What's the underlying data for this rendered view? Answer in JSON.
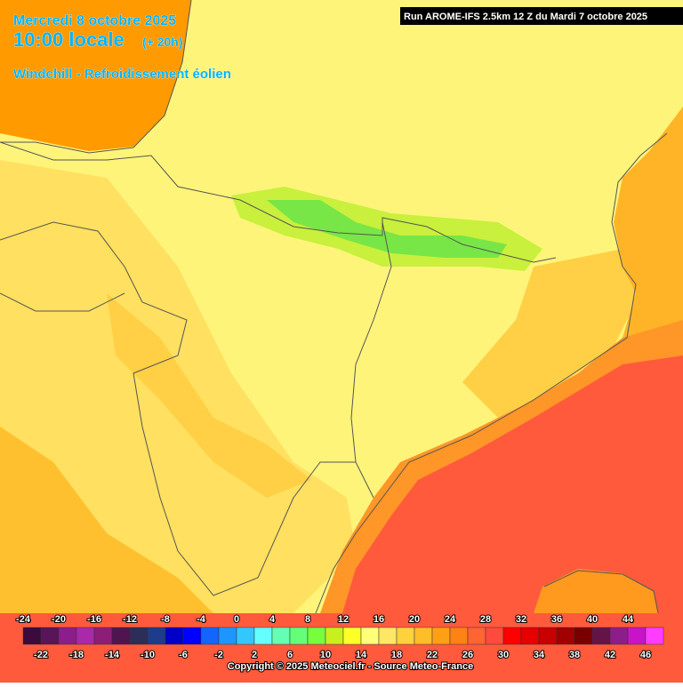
{
  "header": {
    "date": "Mercredi 8 octobre 2025",
    "time": "10:00 locale",
    "offset": "(+ 20h)",
    "variable": "Windchill - Refroidissement éolien",
    "run": "Run AROME-IFS 2.5km 12 Z du Mardi 7 octobre 2025"
  },
  "legend": {
    "values": [
      -24,
      -22,
      -20,
      -18,
      -16,
      -14,
      -12,
      -10,
      -8,
      -6,
      -4,
      -2,
      0,
      2,
      4,
      6,
      8,
      10,
      12,
      14,
      16,
      18,
      20,
      22,
      24,
      26,
      28,
      30,
      32,
      34,
      36,
      38,
      40,
      42,
      44,
      46
    ],
    "colors": [
      "#3c0a3c",
      "#5a145a",
      "#8c1e8c",
      "#aa28aa",
      "#8c1e78",
      "#501450",
      "#2d2d5a",
      "#1e3c8c",
      "#0000c8",
      "#0000ff",
      "#1464ff",
      "#1e96ff",
      "#32c8ff",
      "#64ffff",
      "#64ffb4",
      "#64ff78",
      "#78ff3c",
      "#c8f01e",
      "#ffff28",
      "#ffff78",
      "#ffe664",
      "#ffd23c",
      "#ffbe28",
      "#ffa014",
      "#ff8214",
      "#ff6432",
      "#ff4b3c",
      "#ff0000",
      "#e60000",
      "#c80000",
      "#a00000",
      "#780000",
      "#641446",
      "#8c1e8c",
      "#c814c8",
      "#ff3cff"
    ]
  },
  "footer": {
    "copyright": "Copyright © 2025 Meteociel.fr - Source Meteo-France"
  }
}
